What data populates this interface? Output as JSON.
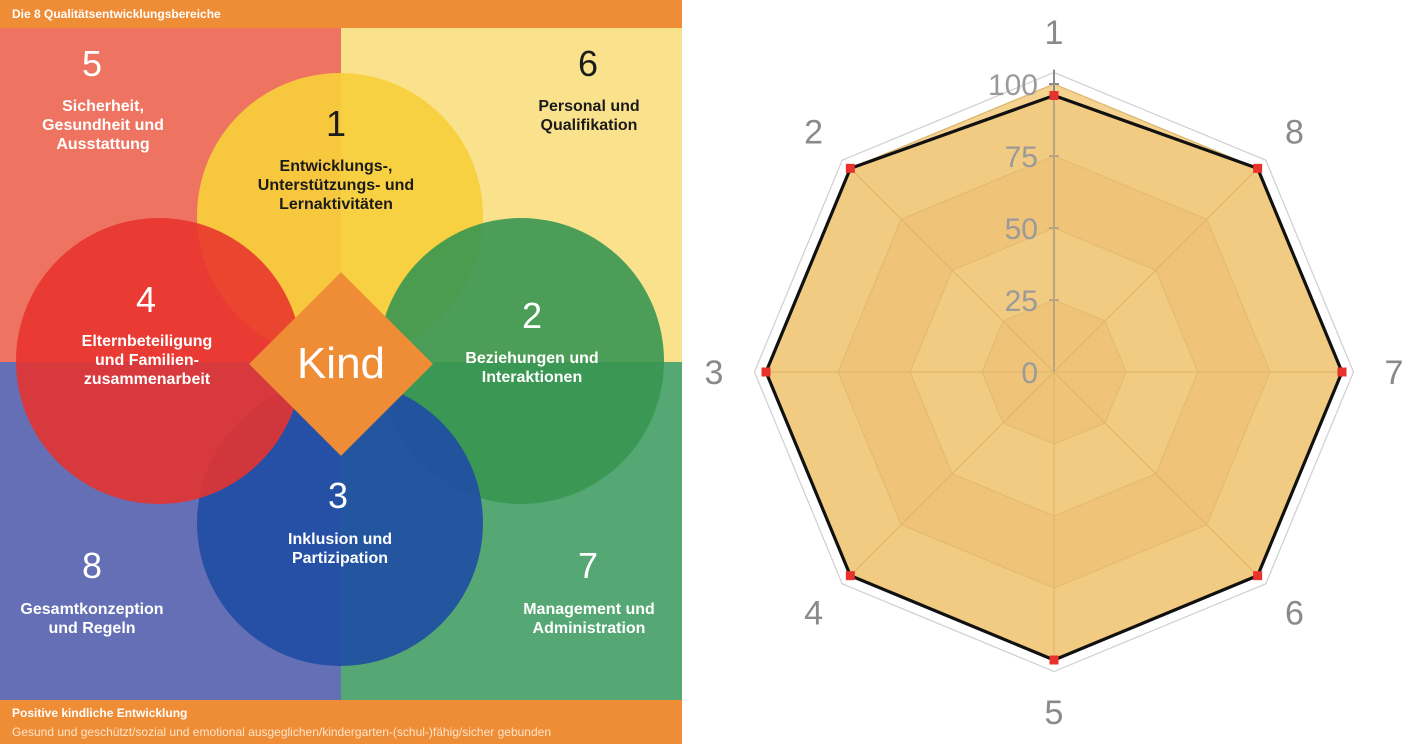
{
  "diagram": {
    "header": "Die 8 Qualitätsentwicklungsbereiche",
    "center_label": "Kind",
    "areas": [
      {
        "num": "1",
        "label_lines": [
          "Entwicklungs-,",
          "Unterstützungs- und",
          "Lernaktivitäten"
        ]
      },
      {
        "num": "2",
        "label_lines": [
          "Beziehungen und",
          "Interaktionen"
        ]
      },
      {
        "num": "3",
        "label_lines": [
          "Inklusion und",
          "Partizipation"
        ]
      },
      {
        "num": "4",
        "label_lines": [
          "Elternbeteiligung",
          "und Familien-",
          "zusammenarbeit"
        ]
      },
      {
        "num": "5",
        "label_lines": [
          "Sicherheit,",
          "Gesundheit und",
          "Ausstattung"
        ]
      },
      {
        "num": "6",
        "label_lines": [
          "Personal und",
          "Qualifikation"
        ]
      },
      {
        "num": "7",
        "label_lines": [
          "Management und",
          "Administration"
        ]
      },
      {
        "num": "8",
        "label_lines": [
          "Gesamtkonzeption",
          "und Regeln"
        ]
      }
    ],
    "footer": {
      "title": "Positive kindliche Entwicklung",
      "text": "Gesund und geschützt/sozial und emotional ausgeglichen/kindergarten-(schul-)fähig/sicher gebunden"
    },
    "colors": {
      "orange": "#ef8d37",
      "quad_top_left": "#ee7461",
      "quad_top_right": "#fae28d",
      "quad_bottom_left": "#646fb6",
      "quad_bottom_right": "#55a874",
      "circle_1": "#f7cf3c",
      "circle_2": "#379651",
      "circle_3": "#1f4ca4",
      "circle_4": "#e8322c"
    }
  },
  "chart_data": {
    "type": "radar",
    "axes": [
      "1",
      "2",
      "3",
      "4",
      "5",
      "6",
      "7",
      "8"
    ],
    "ticks": [
      0,
      25,
      50,
      75,
      100
    ],
    "range": [
      0,
      100
    ],
    "values": {
      "1": 96,
      "2": 100,
      "3": 100,
      "4": 100,
      "5": 100,
      "6": 100,
      "7": 100,
      "8": 100
    },
    "grid": true,
    "fill_color": "#efc476",
    "band_color_a": "#f5d28d",
    "band_color_b": "#eec47a",
    "line_color": "#111111",
    "point_color": "#e8322c"
  }
}
